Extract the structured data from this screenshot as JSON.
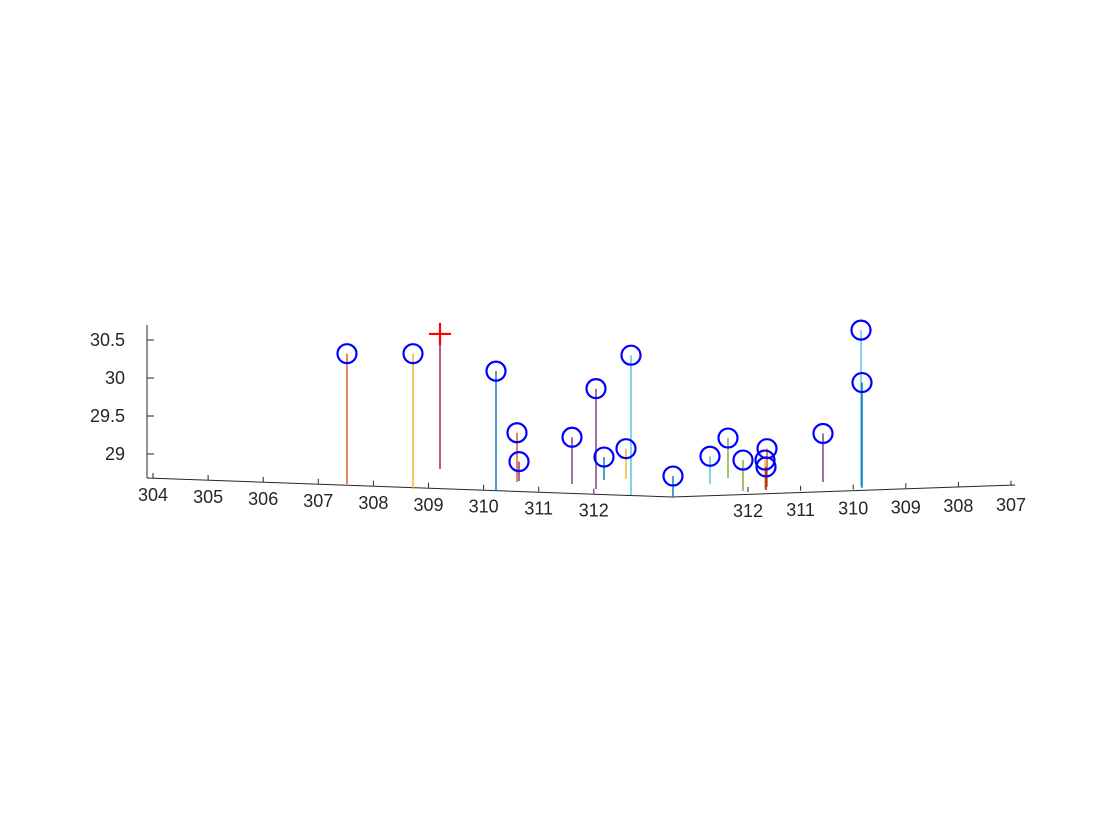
{
  "chart_data": {
    "type": "scatter",
    "subtype": "3d-stem",
    "title": "",
    "xlabel": "",
    "ylabel": "",
    "zlabel": "",
    "grid": false,
    "legend": "none",
    "z_ticks": [
      "29",
      "29.5",
      "30",
      "30.5"
    ],
    "x_ticks": [
      "304",
      "305",
      "306",
      "307",
      "308",
      "309",
      "310",
      "311",
      "312"
    ],
    "y_ticks": [
      "312",
      "311",
      "310",
      "309",
      "308",
      "307"
    ],
    "series": [
      {
        "marker": "circle",
        "color": "#0000ff",
        "points": [
          {
            "z": 30.32,
            "stem_color": "#d95319"
          },
          {
            "z": 30.32,
            "stem_color": "#edb120"
          },
          {
            "z": 30.09,
            "stem_color": "#0072bd"
          },
          {
            "z": 29.28,
            "stem_color": "#d95319"
          },
          {
            "z": 28.9,
            "stem_color": "#7e2f8e"
          },
          {
            "z": 29.22,
            "stem_color": "#7e2f8e"
          },
          {
            "z": 29.86,
            "stem_color": "#7e2f8e"
          },
          {
            "z": 28.96,
            "stem_color": "#0072bd"
          },
          {
            "z": 29.07,
            "stem_color": "#edb120"
          },
          {
            "z": 30.3,
            "stem_color": "#4dbeee"
          },
          {
            "z": 28.71,
            "stem_color": "#0072bd"
          },
          {
            "z": 28.97,
            "stem_color": "#4dbeee"
          },
          {
            "z": 29.21,
            "stem_color": "#77ac30"
          },
          {
            "z": 28.92,
            "stem_color": "#77ac30"
          },
          {
            "z": 29.07,
            "stem_color": "#d95319"
          },
          {
            "z": 28.92,
            "stem_color": "#edb120"
          },
          {
            "z": 28.83,
            "stem_color": "#a2142f"
          },
          {
            "z": 29.27,
            "stem_color": "#7e2f8e"
          },
          {
            "z": 30.63,
            "stem_color": "#4dbeee"
          },
          {
            "z": 29.94,
            "stem_color": "#0072bd"
          }
        ]
      },
      {
        "marker": "plus",
        "color": "#ff0000",
        "points": [
          {
            "z": 30.58,
            "stem_color": "#a2142f"
          }
        ]
      }
    ]
  }
}
